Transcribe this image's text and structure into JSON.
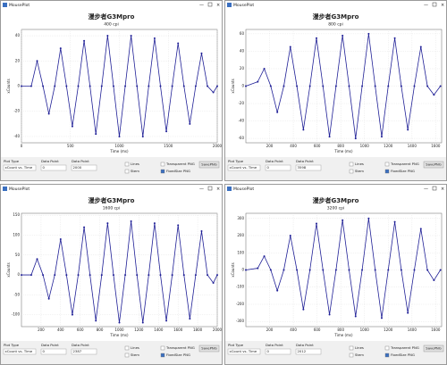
{
  "windows": [
    {
      "title": "MousePlot",
      "controls": {
        "plot_type_label": "Plot Type",
        "plot_type": "xCount vs. Time",
        "dp1_label": "Data Point",
        "dp1": "0",
        "dp2_label": "Data Point",
        "dp2": "2000",
        "lines": "Lines",
        "stem": "Stem",
        "transparent": "Transparent PNG",
        "fixed": "FixedSize PNG",
        "save": "SavePNG"
      }
    },
    {
      "title": "MousePlot",
      "controls": {
        "plot_type_label": "Plot Type",
        "plot_type": "xCount vs. Time",
        "dp1_label": "Data Point",
        "dp1": "0",
        "dp2_label": "Data Point",
        "dp2": "3598",
        "lines": "Lines",
        "stem": "Stem",
        "transparent": "Transparent PNG",
        "fixed": "FixedSize PNG",
        "save": "SavePNG"
      }
    },
    {
      "title": "MousePlot",
      "controls": {
        "plot_type_label": "Plot Type",
        "plot_type": "xCount vs. Time",
        "dp1_label": "Data Point",
        "dp1": "0",
        "dp2_label": "Data Point",
        "dp2": "2387",
        "lines": "Lines",
        "stem": "Stem",
        "transparent": "Transparent PNG",
        "fixed": "FixedSize PNG",
        "save": "SavePNG"
      }
    },
    {
      "title": "MousePlot",
      "controls": {
        "plot_type_label": "Plot Type",
        "plot_type": "xCount vs. Time",
        "dp1_label": "Data Point",
        "dp1": "0",
        "dp2_label": "Data Point",
        "dp2": "2012",
        "lines": "Lines",
        "stem": "Stem",
        "transparent": "Transparent PNG",
        "fixed": "FixedSize PNG",
        "save": "SavePNG"
      }
    }
  ],
  "chart_data": [
    {
      "type": "line",
      "title": "漫步者G3Mpro",
      "subtitle": "400 cpi",
      "xlabel": "Time (ms)",
      "ylabel": "xCounts",
      "color": "#1f1f96",
      "grid": true,
      "x": [
        0,
        100,
        160,
        220,
        280,
        340,
        400,
        460,
        520,
        580,
        640,
        700,
        760,
        820,
        880,
        940,
        1000,
        1060,
        1120,
        1180,
        1240,
        1300,
        1360,
        1420,
        1480,
        1540,
        1600,
        1660,
        1720,
        1780,
        1840,
        1900,
        1960,
        2000
      ],
      "values": [
        0,
        0,
        20,
        0,
        -22,
        0,
        30,
        0,
        -32,
        0,
        36,
        0,
        -38,
        0,
        40,
        0,
        -40,
        0,
        40,
        0,
        -40,
        0,
        38,
        0,
        -36,
        0,
        34,
        0,
        -30,
        0,
        26,
        0,
        -5,
        0
      ],
      "xlim": [
        0,
        2000
      ],
      "ylim": [
        -45,
        45
      ],
      "xticks": [
        0,
        500,
        1000,
        1500,
        2000
      ],
      "yticks": [
        -40,
        -20,
        0,
        20,
        40
      ]
    },
    {
      "type": "line",
      "title": "漫步者G3Mpro",
      "subtitle": "800 cpi",
      "xlabel": "Time (ms)",
      "ylabel": "xCounts",
      "color": "#1f1f96",
      "grid": true,
      "x": [
        0,
        100,
        155,
        210,
        265,
        320,
        375,
        430,
        485,
        540,
        595,
        650,
        705,
        760,
        815,
        870,
        925,
        980,
        1035,
        1090,
        1145,
        1200,
        1255,
        1310,
        1365,
        1420,
        1475,
        1530,
        1585,
        1640
      ],
      "values": [
        0,
        5,
        20,
        0,
        -30,
        0,
        45,
        0,
        -50,
        0,
        55,
        0,
        -58,
        0,
        58,
        0,
        -60,
        0,
        60,
        0,
        -58,
        0,
        55,
        0,
        -50,
        0,
        45,
        0,
        -10,
        0
      ],
      "xlim": [
        0,
        1650
      ],
      "ylim": [
        -65,
        65
      ],
      "xticks": [
        200,
        400,
        600,
        800,
        1000,
        1200,
        1400,
        1600
      ],
      "yticks": [
        -60,
        -40,
        -20,
        0,
        20,
        40,
        60
      ]
    },
    {
      "type": "line",
      "title": "漫步者G3Mpro",
      "subtitle": "1600 cpi",
      "xlabel": "Time (ms)",
      "ylabel": "xCounts",
      "color": "#1f1f96",
      "grid": true,
      "x": [
        0,
        100,
        160,
        220,
        280,
        340,
        400,
        460,
        520,
        580,
        640,
        700,
        760,
        820,
        880,
        940,
        1000,
        1060,
        1120,
        1180,
        1240,
        1300,
        1360,
        1420,
        1480,
        1540,
        1600,
        1660,
        1720,
        1780,
        1840,
        1900,
        1960,
        2000
      ],
      "values": [
        0,
        0,
        40,
        0,
        -60,
        0,
        90,
        0,
        -100,
        0,
        120,
        0,
        -115,
        0,
        130,
        0,
        -120,
        0,
        135,
        0,
        -120,
        0,
        130,
        0,
        -115,
        0,
        125,
        0,
        -110,
        0,
        110,
        0,
        -20,
        0
      ],
      "xlim": [
        0,
        2000
      ],
      "ylim": [
        -130,
        155
      ],
      "xticks": [
        200,
        400,
        600,
        800,
        1000,
        1200,
        1400,
        1600,
        1800,
        2000
      ],
      "yticks": [
        -100,
        -50,
        0,
        50,
        100,
        150
      ]
    },
    {
      "type": "line",
      "title": "漫步者G3Mpro",
      "subtitle": "3200 cpi",
      "xlabel": "Time (ms)",
      "ylabel": "xCounts",
      "color": "#1f1f96",
      "grid": true,
      "x": [
        0,
        100,
        155,
        210,
        265,
        320,
        375,
        430,
        485,
        540,
        595,
        650,
        705,
        760,
        815,
        870,
        925,
        980,
        1035,
        1090,
        1145,
        1200,
        1255,
        1310,
        1365,
        1420,
        1475,
        1530,
        1585,
        1640
      ],
      "values": [
        0,
        10,
        80,
        0,
        -120,
        0,
        200,
        0,
        -230,
        0,
        270,
        0,
        -260,
        0,
        290,
        0,
        -270,
        0,
        300,
        0,
        -280,
        0,
        280,
        0,
        -250,
        0,
        240,
        0,
        -60,
        0
      ],
      "xlim": [
        0,
        1650
      ],
      "ylim": [
        -330,
        330
      ],
      "xticks": [
        200,
        400,
        600,
        800,
        1000,
        1200,
        1400,
        1600
      ],
      "yticks": [
        -300,
        -200,
        -100,
        0,
        100,
        200,
        300
      ]
    }
  ]
}
